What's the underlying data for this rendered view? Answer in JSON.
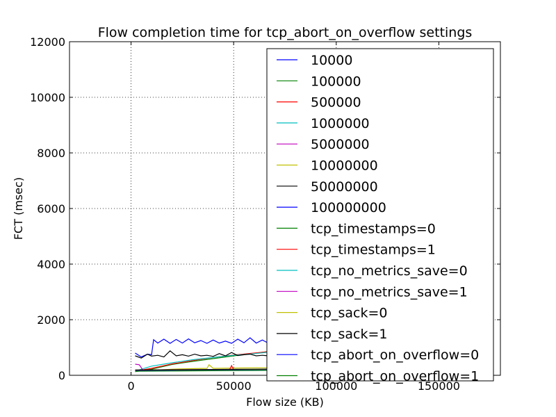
{
  "chart_data": {
    "type": "line",
    "title": "Flow completion time for tcp_abort_on_overflow settings",
    "xlabel": "Flow size (KB)",
    "ylabel": "FCT (msec)",
    "xlim": [
      -30000,
      180000
    ],
    "ylim": [
      0,
      12000
    ],
    "xticks": [
      0,
      50000,
      100000,
      150000
    ],
    "xtick_labels": [
      "0",
      "50000",
      "100000",
      "150000"
    ],
    "yticks": [
      0,
      2000,
      4000,
      6000,
      8000,
      10000,
      12000
    ],
    "ytick_labels": [
      "0",
      "2000",
      "4000",
      "6000",
      "8000",
      "10000",
      "12000"
    ],
    "grid": true,
    "legend_position": "upper right",
    "series": [
      {
        "name": "10000",
        "color": "#0000ff",
        "x": [
          2000,
          5000,
          8000,
          10000,
          11000,
          13000,
          16000,
          19000,
          22000,
          25000,
          28000,
          31000,
          34000,
          37000,
          40000,
          43000,
          46000,
          49000,
          52000,
          55000,
          58000,
          61000,
          64000,
          67000
        ],
        "y": [
          800,
          660,
          760,
          740,
          1280,
          1160,
          1300,
          1150,
          1290,
          1160,
          1310,
          1170,
          1250,
          1150,
          1270,
          1160,
          1230,
          1150,
          1300,
          1170,
          1350,
          1160,
          1270,
          1150
        ]
      },
      {
        "name": "100000",
        "color": "#008000",
        "x": [
          2000,
          10000,
          20000,
          30000,
          40000,
          50000,
          60000,
          67000
        ],
        "y": [
          130,
          220,
          390,
          500,
          600,
          700,
          790,
          860
        ]
      },
      {
        "name": "500000",
        "color": "#ff0000",
        "x": [
          2000,
          10000,
          20000,
          30000,
          40000,
          50000,
          60000,
          67000
        ],
        "y": [
          150,
          250,
          410,
          530,
          640,
          730,
          800,
          850
        ]
      },
      {
        "name": "1000000",
        "color": "#00bfbf",
        "x": [
          2000,
          10000,
          20000,
          30000,
          40000,
          50000,
          60000,
          67000
        ],
        "y": [
          150,
          330,
          450,
          560,
          640,
          720,
          780,
          830
        ]
      },
      {
        "name": "5000000",
        "color": "#bf00bf",
        "x": [
          2000,
          4000,
          6000,
          10000,
          20000,
          30000,
          40000,
          50000,
          60000,
          67000
        ],
        "y": [
          400,
          380,
          160,
          170,
          180,
          190,
          200,
          200,
          210,
          210
        ]
      },
      {
        "name": "10000000",
        "color": "#bfbf00",
        "x": [
          2000,
          10000,
          20000,
          30000,
          37000,
          38000,
          40000,
          50000,
          60000,
          67000
        ],
        "y": [
          160,
          180,
          220,
          240,
          250,
          380,
          250,
          260,
          270,
          270
        ]
      },
      {
        "name": "50000000",
        "color": "#000000",
        "x": [
          2000,
          5000,
          8000,
          10000,
          13000,
          16000,
          19000,
          22000,
          25000,
          28000,
          31000,
          34000,
          37000,
          40000,
          43000,
          46000,
          49000,
          52000,
          55000,
          58000,
          61000,
          64000,
          67000
        ],
        "y": [
          700,
          620,
          760,
          690,
          720,
          660,
          880,
          700,
          740,
          690,
          760,
          700,
          720,
          680,
          780,
          700,
          820,
          710,
          740,
          760,
          700,
          720,
          700
        ]
      },
      {
        "name": "100000000",
        "color": "#0000ff",
        "x": [
          2000,
          20000,
          40000,
          60000,
          67000
        ],
        "y": [
          180,
          190,
          200,
          210,
          215
        ]
      },
      {
        "name": "tcp_timestamps=0",
        "color": "#008000",
        "x": [
          2000,
          20000,
          40000,
          60000,
          67000
        ],
        "y": [
          165,
          175,
          185,
          195,
          200
        ]
      },
      {
        "name": "tcp_timestamps=1",
        "color": "#ff0000",
        "x": [
          2000,
          20000,
          40000,
          48000,
          49000,
          50000,
          60000,
          67000
        ],
        "y": [
          170,
          180,
          190,
          195,
          350,
          200,
          205,
          210
        ]
      },
      {
        "name": "tcp_no_metrics_save=0",
        "color": "#00bfbf",
        "x": [
          2000,
          20000,
          40000,
          60000,
          67000
        ],
        "y": [
          160,
          170,
          180,
          190,
          195
        ]
      },
      {
        "name": "tcp_no_metrics_save=1",
        "color": "#bf00bf",
        "x": [
          2000,
          20000,
          40000,
          60000,
          67000
        ],
        "y": [
          175,
          185,
          195,
          205,
          210
        ]
      },
      {
        "name": "tcp_sack=0",
        "color": "#bfbf00",
        "x": [
          2000,
          20000,
          40000,
          60000,
          67000
        ],
        "y": [
          185,
          195,
          205,
          215,
          220
        ]
      },
      {
        "name": "tcp_sack=1",
        "color": "#000000",
        "x": [
          2000,
          20000,
          40000,
          60000,
          67000
        ],
        "y": [
          190,
          200,
          210,
          220,
          225
        ]
      },
      {
        "name": "tcp_abort_on_overflow=0",
        "color": "#0000ff",
        "x": [
          2000,
          20000,
          40000,
          60000,
          67000
        ],
        "y": [
          155,
          165,
          175,
          185,
          190
        ]
      },
      {
        "name": "tcp_abort_on_overflow=1",
        "color": "#008000",
        "x": [
          2000,
          20000,
          40000,
          60000,
          67000
        ],
        "y": [
          145,
          155,
          165,
          175,
          180
        ]
      }
    ]
  }
}
